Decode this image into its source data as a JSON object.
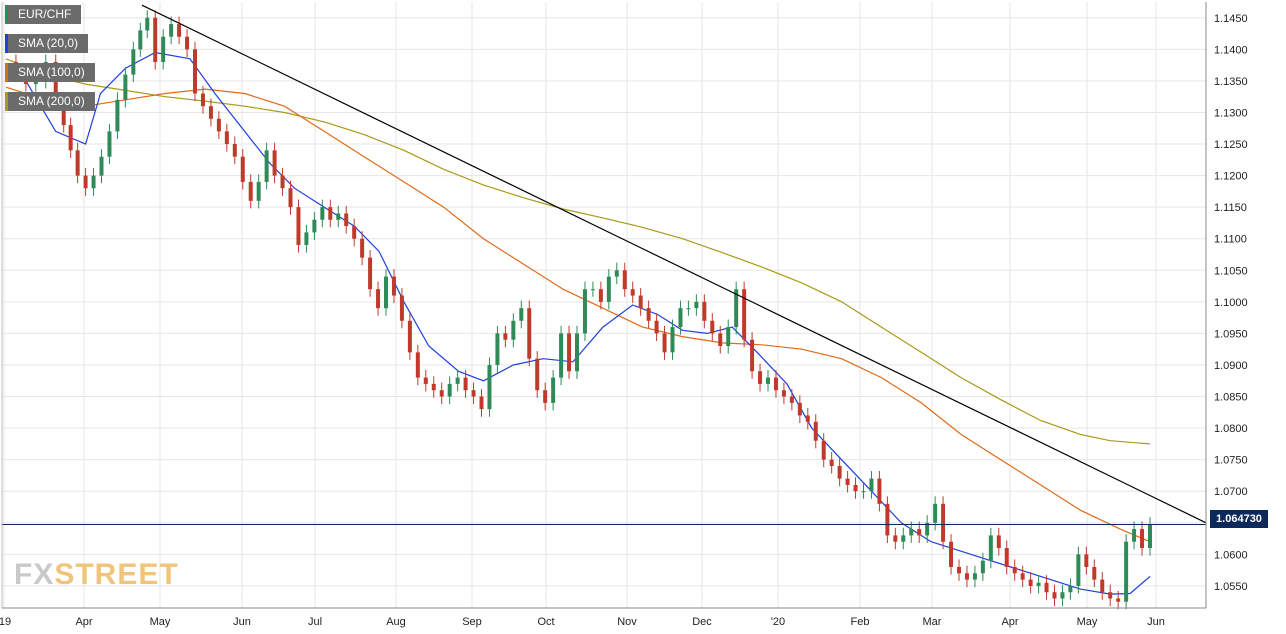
{
  "chart_data": {
    "type": "candlestick",
    "symbol": "EUR/CHF",
    "y_axis": {
      "position": "right",
      "ylim": [
        1.0515,
        1.1475
      ],
      "ticks": [
        "1.1450",
        "1.1400",
        "1.1350",
        "1.1300",
        "1.1250",
        "1.1200",
        "1.1150",
        "1.1100",
        "1.1050",
        "1.1000",
        "1.0950",
        "1.0900",
        "1.0850",
        "1.0800",
        "1.0750",
        "1.0700",
        "1.0650",
        "1.0600",
        "1.0550"
      ]
    },
    "x_axis": {
      "labels": [
        "'19",
        "Apr",
        "May",
        "Jun",
        "Jul",
        "Aug",
        "Sep",
        "Oct",
        "Nov",
        "Dec",
        "'20",
        "Feb",
        "Mar",
        "Apr",
        "May",
        "Jun"
      ]
    },
    "legend": [
      "EUR/CHF",
      "SMA (20,0)",
      "SMA (100,0)",
      "SMA (200,0)"
    ],
    "last_price": "1.064730",
    "colors": {
      "up": "#2e8b57",
      "down": "#c0392b",
      "sma20": "#1f3fe0",
      "sma100": "#e06a1a",
      "sma200": "#a89a1a",
      "trendline": "#000000",
      "price_line": "#0b2a5b",
      "grid": "#e6e6e6"
    },
    "grid": true,
    "trendline": [
      {
        "date": "Apr 22 2019",
        "price": 1.147
      },
      {
        "date": "Jun 2 2020",
        "price": 1.065
      }
    ],
    "sma20": [
      [
        0,
        1.137
      ],
      [
        20,
        1.135
      ],
      [
        50,
        1.127
      ],
      [
        80,
        1.125
      ],
      [
        95,
        1.133
      ],
      [
        120,
        1.137
      ],
      [
        150,
        1.1395
      ],
      [
        185,
        1.1385
      ],
      [
        210,
        1.133
      ],
      [
        240,
        1.127
      ],
      [
        265,
        1.122
      ],
      [
        290,
        1.118
      ],
      [
        320,
        1.115
      ],
      [
        350,
        1.112
      ],
      [
        375,
        1.108
      ],
      [
        400,
        1.1
      ],
      [
        425,
        1.093
      ],
      [
        455,
        1.089
      ],
      [
        480,
        1.0875
      ],
      [
        510,
        1.09
      ],
      [
        540,
        1.091
      ],
      [
        570,
        1.0905
      ],
      [
        600,
        1.096
      ],
      [
        630,
        1.0995
      ],
      [
        655,
        1.098
      ],
      [
        680,
        1.0955
      ],
      [
        705,
        1.095
      ],
      [
        730,
        1.096
      ],
      [
        755,
        1.092
      ],
      [
        785,
        1.087
      ],
      [
        810,
        1.08
      ],
      [
        840,
        1.075
      ],
      [
        870,
        1.07
      ],
      [
        900,
        1.065
      ],
      [
        930,
        1.062
      ],
      [
        960,
        1.0605
      ],
      [
        990,
        1.059
      ],
      [
        1020,
        1.0575
      ],
      [
        1050,
        1.056
      ],
      [
        1080,
        1.0545
      ],
      [
        1110,
        1.0537
      ],
      [
        1130,
        1.0538
      ],
      [
        1150,
        1.0565
      ]
    ],
    "sma100": [
      [
        0,
        1.134
      ],
      [
        40,
        1.132
      ],
      [
        80,
        1.131
      ],
      [
        120,
        1.132
      ],
      [
        160,
        1.133
      ],
      [
        200,
        1.1337
      ],
      [
        240,
        1.133
      ],
      [
        280,
        1.131
      ],
      [
        320,
        1.127
      ],
      [
        360,
        1.123
      ],
      [
        400,
        1.119
      ],
      [
        440,
        1.115
      ],
      [
        480,
        1.11
      ],
      [
        520,
        1.106
      ],
      [
        560,
        1.102
      ],
      [
        600,
        1.099
      ],
      [
        640,
        1.096
      ],
      [
        680,
        1.0945
      ],
      [
        720,
        1.0935
      ],
      [
        760,
        1.0932
      ],
      [
        800,
        1.0925
      ],
      [
        840,
        1.091
      ],
      [
        880,
        1.088
      ],
      [
        920,
        1.084
      ],
      [
        960,
        1.079
      ],
      [
        1000,
        1.075
      ],
      [
        1040,
        1.071
      ],
      [
        1080,
        1.067
      ],
      [
        1120,
        1.064
      ],
      [
        1150,
        1.062
      ]
    ],
    "sma200": [
      [
        0,
        1.1385
      ],
      [
        40,
        1.136
      ],
      [
        80,
        1.1345
      ],
      [
        120,
        1.1335
      ],
      [
        160,
        1.1325
      ],
      [
        200,
        1.1318
      ],
      [
        240,
        1.131
      ],
      [
        280,
        1.13
      ],
      [
        320,
        1.1285
      ],
      [
        360,
        1.1265
      ],
      [
        400,
        1.124
      ],
      [
        440,
        1.121
      ],
      [
        480,
        1.1185
      ],
      [
        520,
        1.1165
      ],
      [
        560,
        1.1147
      ],
      [
        600,
        1.1133
      ],
      [
        640,
        1.1118
      ],
      [
        680,
        1.11
      ],
      [
        720,
        1.1078
      ],
      [
        760,
        1.1055
      ],
      [
        800,
        1.103
      ],
      [
        840,
        1.1
      ],
      [
        880,
        1.096
      ],
      [
        920,
        1.092
      ],
      [
        960,
        1.088
      ],
      [
        1000,
        1.0845
      ],
      [
        1040,
        1.0812
      ],
      [
        1080,
        1.079
      ],
      [
        1110,
        1.078
      ],
      [
        1150,
        1.0775
      ]
    ],
    "closes": [
      [
        0,
        1.138
      ],
      [
        10,
        1.136
      ],
      [
        20,
        1.1345
      ],
      [
        30,
        1.135
      ],
      [
        40,
        1.138
      ],
      [
        50,
        1.132
      ],
      [
        58,
        1.128
      ],
      [
        65,
        1.124
      ],
      [
        72,
        1.12
      ],
      [
        80,
        1.118
      ],
      [
        88,
        1.12
      ],
      [
        96,
        1.123
      ],
      [
        104,
        1.127
      ],
      [
        112,
        1.132
      ],
      [
        120,
        1.136
      ],
      [
        128,
        1.14
      ],
      [
        135,
        1.143
      ],
      [
        142,
        1.145
      ],
      [
        150,
        1.138
      ],
      [
        158,
        1.142
      ],
      [
        166,
        1.144
      ],
      [
        174,
        1.142
      ],
      [
        182,
        1.14
      ],
      [
        190,
        1.133
      ],
      [
        198,
        1.131
      ],
      [
        206,
        1.129
      ],
      [
        214,
        1.127
      ],
      [
        222,
        1.125
      ],
      [
        230,
        1.123
      ],
      [
        238,
        1.119
      ],
      [
        246,
        1.116
      ],
      [
        254,
        1.119
      ],
      [
        262,
        1.124
      ],
      [
        270,
        1.12
      ],
      [
        278,
        1.118
      ],
      [
        286,
        1.115
      ],
      [
        294,
        1.109
      ],
      [
        302,
        1.111
      ],
      [
        310,
        1.113
      ],
      [
        318,
        1.115
      ],
      [
        326,
        1.113
      ],
      [
        334,
        1.114
      ],
      [
        342,
        1.112
      ],
      [
        350,
        1.11
      ],
      [
        358,
        1.107
      ],
      [
        366,
        1.102
      ],
      [
        374,
        1.099
      ],
      [
        382,
        1.104
      ],
      [
        390,
        1.101
      ],
      [
        398,
        1.097
      ],
      [
        406,
        1.092
      ],
      [
        414,
        1.088
      ],
      [
        422,
        1.087
      ],
      [
        430,
        1.086
      ],
      [
        438,
        1.085
      ],
      [
        446,
        1.087
      ],
      [
        454,
        1.088
      ],
      [
        462,
        1.086
      ],
      [
        470,
        1.085
      ],
      [
        478,
        1.083
      ],
      [
        486,
        1.09
      ],
      [
        494,
        1.095
      ],
      [
        502,
        1.094
      ],
      [
        510,
        1.097
      ],
      [
        518,
        1.099
      ],
      [
        526,
        1.091
      ],
      [
        534,
        1.086
      ],
      [
        542,
        1.084
      ],
      [
        550,
        1.088
      ],
      [
        558,
        1.095
      ],
      [
        566,
        1.089
      ],
      [
        574,
        1.095
      ],
      [
        582,
        1.102
      ],
      [
        590,
        1.102
      ],
      [
        598,
        1.1
      ],
      [
        606,
        1.104
      ],
      [
        614,
        1.105
      ],
      [
        622,
        1.102
      ],
      [
        630,
        1.101
      ],
      [
        638,
        1.099
      ],
      [
        646,
        1.097
      ],
      [
        654,
        1.095
      ],
      [
        662,
        1.092
      ],
      [
        670,
        1.096
      ],
      [
        678,
        1.099
      ],
      [
        686,
        1.099
      ],
      [
        694,
        1.1
      ],
      [
        702,
        1.097
      ],
      [
        710,
        1.095
      ],
      [
        718,
        1.093
      ],
      [
        726,
        1.096
      ],
      [
        734,
        1.102
      ],
      [
        742,
        1.094
      ],
      [
        750,
        1.089
      ],
      [
        758,
        1.087
      ],
      [
        766,
        1.088
      ],
      [
        774,
        1.086
      ],
      [
        782,
        1.085
      ],
      [
        790,
        1.084
      ],
      [
        798,
        1.082
      ],
      [
        806,
        1.081
      ],
      [
        814,
        1.078
      ],
      [
        822,
        1.075
      ],
      [
        830,
        1.074
      ],
      [
        838,
        1.072
      ],
      [
        846,
        1.071
      ],
      [
        854,
        1.07
      ],
      [
        862,
        1.07
      ],
      [
        870,
        1.072
      ],
      [
        878,
        1.068
      ],
      [
        886,
        1.063
      ],
      [
        894,
        1.062
      ],
      [
        902,
        1.063
      ],
      [
        910,
        1.064
      ],
      [
        918,
        1.063
      ],
      [
        926,
        1.065
      ],
      [
        934,
        1.068
      ],
      [
        942,
        1.062
      ],
      [
        950,
        1.058
      ],
      [
        958,
        1.057
      ],
      [
        966,
        1.056
      ],
      [
        974,
        1.057
      ],
      [
        982,
        1.059
      ],
      [
        990,
        1.063
      ],
      [
        998,
        1.061
      ],
      [
        1006,
        1.058
      ],
      [
        1014,
        1.057
      ],
      [
        1022,
        1.056
      ],
      [
        1030,
        1.055
      ],
      [
        1038,
        1.0555
      ],
      [
        1046,
        1.054
      ],
      [
        1054,
        1.053
      ],
      [
        1062,
        1.054
      ],
      [
        1070,
        1.055
      ],
      [
        1078,
        1.06
      ],
      [
        1086,
        1.058
      ],
      [
        1094,
        1.056
      ],
      [
        1102,
        1.054
      ],
      [
        1110,
        1.053
      ],
      [
        1118,
        1.0525
      ],
      [
        1126,
        1.062
      ],
      [
        1134,
        1.064
      ],
      [
        1142,
        1.061
      ],
      [
        1150,
        1.0647
      ]
    ]
  }
}
